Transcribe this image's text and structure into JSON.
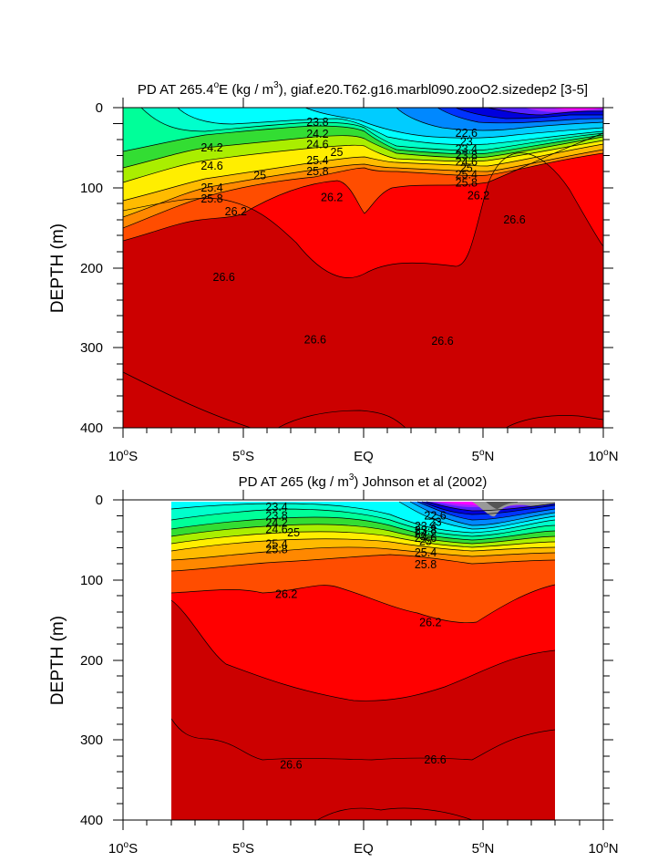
{
  "chart_data": [
    {
      "type": "contour",
      "title_pre": "PD AT 265.4",
      "title_deg": "o",
      "title_mid": "E (kg / m",
      "title_sup": "3",
      "title_post": "), giaf.e20.T62.g16.marbl090.zooO2.sizedep2 [3-5]",
      "ylabel": "DEPTH (m)",
      "xlabel": "",
      "xlim": [
        -10,
        10
      ],
      "ylim": [
        0,
        400
      ],
      "y_reversed": true,
      "data_xrange": [
        -10,
        10
      ],
      "x_ticks": [
        {
          "value": -10,
          "num": "10",
          "deg": "o",
          "suf": "S"
        },
        {
          "value": -5,
          "num": "5",
          "deg": "o",
          "suf": "S"
        },
        {
          "value": 0,
          "num": "EQ",
          "deg": "",
          "suf": ""
        },
        {
          "value": 5,
          "num": "5",
          "deg": "o",
          "suf": "N"
        },
        {
          "value": 10,
          "num": "10",
          "deg": "o",
          "suf": "N"
        }
      ],
      "y_ticks": [
        "0",
        "100",
        "200",
        "300",
        "400"
      ],
      "contour_labels": [
        {
          "x": -6.3,
          "y": 50,
          "text": "24.2"
        },
        {
          "x": -6.3,
          "y": 73,
          "text": "24.6"
        },
        {
          "x": -4.3,
          "y": 85,
          "text": "25"
        },
        {
          "x": -6.3,
          "y": 100,
          "text": "25.4"
        },
        {
          "x": -6.3,
          "y": 114,
          "text": "25.8"
        },
        {
          "x": -5.3,
          "y": 130,
          "text": "26.2"
        },
        {
          "x": -5.8,
          "y": 212,
          "text": "26.6"
        },
        {
          "x": -1.9,
          "y": 18,
          "text": "23.8"
        },
        {
          "x": -1.9,
          "y": 33,
          "text": "24.2"
        },
        {
          "x": -1.9,
          "y": 46,
          "text": "24.6"
        },
        {
          "x": -1.1,
          "y": 56,
          "text": "25"
        },
        {
          "x": -1.9,
          "y": 66,
          "text": "25.4"
        },
        {
          "x": -1.9,
          "y": 80,
          "text": "25.8"
        },
        {
          "x": -1.3,
          "y": 112,
          "text": "26.2"
        },
        {
          "x": -2.0,
          "y": 290,
          "text": "26.6"
        },
        {
          "x": 4.3,
          "y": 32,
          "text": "22.6"
        },
        {
          "x": 4.3,
          "y": 43,
          "text": "23"
        },
        {
          "x": 4.3,
          "y": 52,
          "text": "23.4"
        },
        {
          "x": 4.3,
          "y": 60,
          "text": "23.8"
        },
        {
          "x": 4.3,
          "y": 68,
          "text": "24.6"
        },
        {
          "x": 4.3,
          "y": 76,
          "text": "25"
        },
        {
          "x": 4.3,
          "y": 84,
          "text": "25.4"
        },
        {
          "x": 4.3,
          "y": 94,
          "text": "25.8"
        },
        {
          "x": 4.8,
          "y": 110,
          "text": "26.2"
        },
        {
          "x": 6.3,
          "y": 140,
          "text": "26.6"
        },
        {
          "x": 3.3,
          "y": 292,
          "text": "26.6"
        }
      ]
    },
    {
      "type": "contour",
      "title_pre": "PD AT 265 (kg / m",
      "title_sup": "3",
      "title_post": ") Johnson et al (2002)",
      "ylabel": "DEPTH (m)",
      "xlabel": "",
      "xlim": [
        -10,
        10
      ],
      "ylim": [
        0,
        400
      ],
      "y_reversed": true,
      "data_xrange": [
        -8,
        8
      ],
      "x_ticks": [
        {
          "value": -10,
          "num": "10",
          "deg": "o",
          "suf": "S"
        },
        {
          "value": -5,
          "num": "5",
          "deg": "o",
          "suf": "S"
        },
        {
          "value": 0,
          "num": "EQ",
          "deg": "",
          "suf": ""
        },
        {
          "value": 5,
          "num": "5",
          "deg": "o",
          "suf": "N"
        },
        {
          "value": 10,
          "num": "10",
          "deg": "o",
          "suf": "N"
        }
      ],
      "y_ticks": [
        "0",
        "100",
        "200",
        "300",
        "400"
      ],
      "contour_labels": [
        {
          "x": -3.6,
          "y": 9,
          "text": "23.4"
        },
        {
          "x": -3.6,
          "y": 20,
          "text": "23.8"
        },
        {
          "x": -3.6,
          "y": 29,
          "text": "24.2"
        },
        {
          "x": -3.6,
          "y": 37,
          "text": "24.6"
        },
        {
          "x": -2.9,
          "y": 41,
          "text": "25"
        },
        {
          "x": -3.6,
          "y": 55,
          "text": "25.4"
        },
        {
          "x": -3.6,
          "y": 62,
          "text": "25.8"
        },
        {
          "x": -3.2,
          "y": 118,
          "text": "26.2"
        },
        {
          "x": -3.0,
          "y": 331,
          "text": "26.6"
        },
        {
          "x": 3.0,
          "y": 20,
          "text": "22.6"
        },
        {
          "x": 3.0,
          "y": 28,
          "text": "23"
        },
        {
          "x": 2.6,
          "y": 33,
          "text": "23.4"
        },
        {
          "x": 2.6,
          "y": 38,
          "text": "23.8"
        },
        {
          "x": 2.6,
          "y": 43,
          "text": "24.2"
        },
        {
          "x": 2.6,
          "y": 48,
          "text": "24.6"
        },
        {
          "x": 2.6,
          "y": 52,
          "text": "25"
        },
        {
          "x": 2.6,
          "y": 66,
          "text": "25.4"
        },
        {
          "x": 2.6,
          "y": 81,
          "text": "25.8"
        },
        {
          "x": 2.8,
          "y": 153,
          "text": "26.2"
        },
        {
          "x": 3.0,
          "y": 325,
          "text": "26.6"
        }
      ]
    }
  ]
}
